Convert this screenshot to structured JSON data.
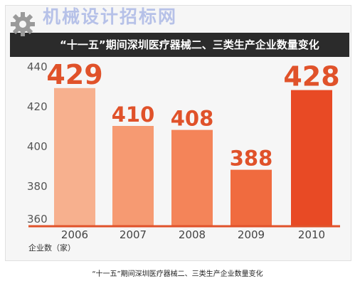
{
  "watermark": "机械设计招标网",
  "banner_title": "“十一五”期间深圳医疗器械二、三类生产企业数量变化",
  "caption": "“十一五”期间深圳医疗器械二、三类生产企业数量变化",
  "colors": {
    "banner": "#2b2b2b",
    "value_label": "#e0522a",
    "baseline": "#e0522a",
    "bars": [
      "#f7b08e",
      "#f69a72",
      "#f48459",
      "#f06b3f",
      "#e84a25"
    ]
  },
  "chart_data": {
    "type": "bar",
    "title": "“十一五”期间深圳医疗器械二、三类生产企业数量变化",
    "xlabel": "",
    "ylabel": "企业数（家）",
    "categories": [
      "2006",
      "2007",
      "2008",
      "2009",
      "2010"
    ],
    "values": [
      429,
      410,
      408,
      388,
      428
    ],
    "data_labels": [
      "429",
      "410",
      "408",
      "388",
      "428"
    ],
    "yticks": [
      360,
      380,
      400,
      420,
      440
    ],
    "ylim": [
      360,
      440
    ],
    "grid": false,
    "legend": "none"
  }
}
